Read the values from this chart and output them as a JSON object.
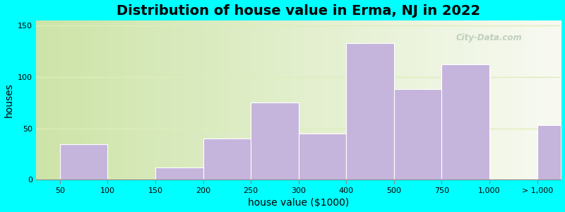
{
  "title": "Distribution of house value in Erma, NJ in 2022",
  "xlabel": "house value ($1000)",
  "ylabel": "houses",
  "bar_color": "#c5b4dc",
  "background_color": "#00ffff",
  "yticks": [
    0,
    50,
    100,
    150
  ],
  "ylim": [
    0,
    155
  ],
  "bar_heights": [
    35,
    0,
    12,
    40,
    75,
    45,
    133,
    88,
    112,
    0,
    53
  ],
  "xtick_labels": [
    "50",
    "100",
    "150",
    "200",
    "250",
    "300",
    "400",
    "500",
    "750",
    "1,000",
    "> 1,000"
  ],
  "title_fontsize": 14,
  "axis_label_fontsize": 10,
  "watermark_text": "City-Data.com",
  "grid_color": "#e8e0f0",
  "bg_left_color": "#d6e8b8",
  "bg_right_color": "#f0f5e8"
}
